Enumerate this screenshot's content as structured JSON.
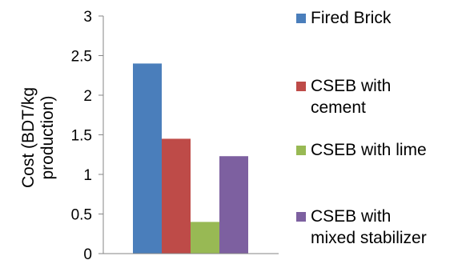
{
  "chart_data": {
    "type": "bar",
    "title": "",
    "xlabel": "",
    "ylabel": "Cost (BDT/kg\nproduction)",
    "ylim": [
      0,
      3
    ],
    "yticks": [
      "0",
      "0.5",
      "1",
      "1.5",
      "2",
      "2.5",
      "3"
    ],
    "grid": false,
    "legend_placement": "right",
    "categories": [
      ""
    ],
    "series": [
      {
        "name": "Fired Brick",
        "values": [
          2.4
        ],
        "color": "#4A7EBB"
      },
      {
        "name": "CSEB with\ncement",
        "values": [
          1.45
        ],
        "color": "#BE4B48"
      },
      {
        "name": "CSEB with lime",
        "values": [
          0.4
        ],
        "color": "#98B954"
      },
      {
        "name": "CSEB with\nmixed stabilizer",
        "values": [
          1.23
        ],
        "color": "#7D60A0"
      }
    ]
  }
}
